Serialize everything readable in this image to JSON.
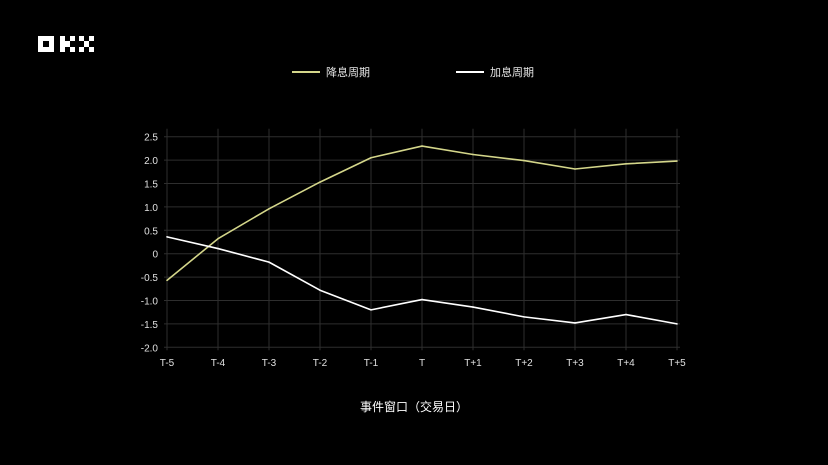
{
  "brand": {
    "logo_text": "OKX"
  },
  "chart_data": {
    "type": "line",
    "title": "",
    "xlabel": "事件窗口（交易日）",
    "ylabel": "",
    "categories": [
      "T-5",
      "T-4",
      "T-3",
      "T-2",
      "T-1",
      "T",
      "T+1",
      "T+2",
      "T+3",
      "T+4",
      "T+5"
    ],
    "yticks": [
      2.5,
      2.0,
      1.5,
      1.0,
      0.5,
      0,
      -0.5,
      -1.0,
      -1.5,
      -2.0
    ],
    "ytick_labels": [
      "2.5",
      "2.0",
      "1.5",
      "1.0",
      "0.5",
      "0",
      "-0.5",
      "-1.0",
      "-1.5",
      "-2.0"
    ],
    "ylim": [
      -2.0,
      2.5
    ],
    "grid": true,
    "legend_position": "top",
    "series": [
      {
        "name": "降息周期",
        "color": "#d4d68a",
        "values": [
          -0.57,
          0.32,
          0.96,
          1.53,
          2.05,
          2.3,
          2.12,
          1.99,
          1.81,
          1.92,
          1.98
        ]
      },
      {
        "name": "加息周期",
        "color": "#ffffff",
        "values": [
          0.36,
          0.11,
          -0.18,
          -0.78,
          -1.2,
          -0.98,
          -1.14,
          -1.35,
          -1.48,
          -1.3,
          -1.5
        ]
      }
    ]
  }
}
